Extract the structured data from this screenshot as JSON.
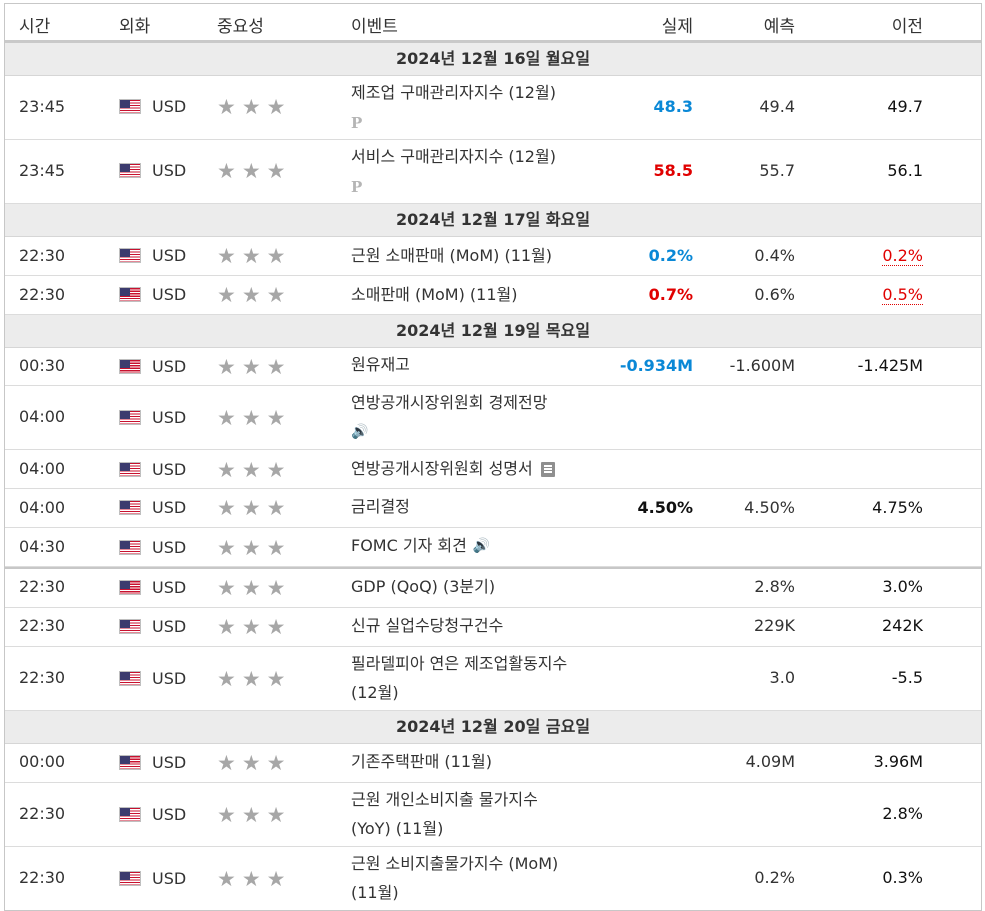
{
  "header": {
    "time": "시간",
    "currency": "외화",
    "importance": "중요성",
    "event": "이벤트",
    "actual": "실제",
    "forecast": "예측",
    "previous": "이전"
  },
  "days": {
    "d16": "2024년 12월 16일 월요일",
    "d17": "2024년 12월 17일 화요일",
    "d19": "2024년 12월 19일 목요일",
    "d20": "2024년 12월 20일 금요일"
  },
  "stars_glyph": "★★★",
  "prelim_glyph": "P",
  "speaker_glyph": "🔊",
  "icons": {
    "flag": "us-flag-icon",
    "stars": "star-rating-icon",
    "prelim": "preliminary-icon",
    "speaker": "speaker-icon",
    "document": "document-icon"
  },
  "colors": {
    "better": "#0a88d6",
    "worse": "#e00000",
    "star": "#a7a7a7"
  },
  "rows": [
    {
      "time": "23:45",
      "currency": "USD",
      "event": "제조업 구매관리자지수 (12월)",
      "actual": "48.3",
      "forecast": "49.4",
      "previous": "49.7"
    },
    {
      "time": "23:45",
      "currency": "USD",
      "event": "서비스 구매관리자지수 (12월)",
      "actual": "58.5",
      "forecast": "55.7",
      "previous": "56.1"
    },
    {
      "time": "22:30",
      "currency": "USD",
      "event": "근원 소매판매 (MoM) (11월)",
      "actual": "0.2%",
      "forecast": "0.4%",
      "previous": "0.2%"
    },
    {
      "time": "22:30",
      "currency": "USD",
      "event": "소매판매 (MoM) (11월)",
      "actual": "0.7%",
      "forecast": "0.6%",
      "previous": "0.5%"
    },
    {
      "time": "00:30",
      "currency": "USD",
      "event": "원유재고",
      "actual": "-0.934M",
      "forecast": "-1.600M",
      "previous": "-1.425M"
    },
    {
      "time": "04:00",
      "currency": "USD",
      "event": "연방공개시장위원회 경제전망"
    },
    {
      "time": "04:00",
      "currency": "USD",
      "event": "연방공개시장위원회 성명서"
    },
    {
      "time": "04:00",
      "currency": "USD",
      "event": "금리결정",
      "actual": "4.50%",
      "forecast": "4.50%",
      "previous": "4.75%"
    },
    {
      "time": "04:30",
      "currency": "USD",
      "event": "FOMC 기자 회견"
    },
    {
      "time": "22:30",
      "currency": "USD",
      "event": "GDP (QoQ) (3분기)",
      "forecast": "2.8%",
      "previous": "3.0%"
    },
    {
      "time": "22:30",
      "currency": "USD",
      "event": "신규 실업수당청구건수",
      "forecast": "229K",
      "previous": "242K"
    },
    {
      "time": "22:30",
      "currency": "USD",
      "event_line1": "필라델피아 연은 제조업활동지수",
      "event_line2": "(12월)",
      "forecast": "3.0",
      "previous": "-5.5"
    },
    {
      "time": "00:00",
      "currency": "USD",
      "event": "기존주택판매 (11월)",
      "forecast": "4.09M",
      "previous": "3.96M"
    },
    {
      "time": "22:30",
      "currency": "USD",
      "event_line1": "근원 개인소비지출 물가지수",
      "event_line2": "(YoY) (11월)",
      "previous": "2.8%"
    },
    {
      "time": "22:30",
      "currency": "USD",
      "event_line1": "근원 소비지출물가지수 (MoM)",
      "event_line2": "(11월)",
      "forecast": "0.2%",
      "previous": "0.3%"
    }
  ]
}
